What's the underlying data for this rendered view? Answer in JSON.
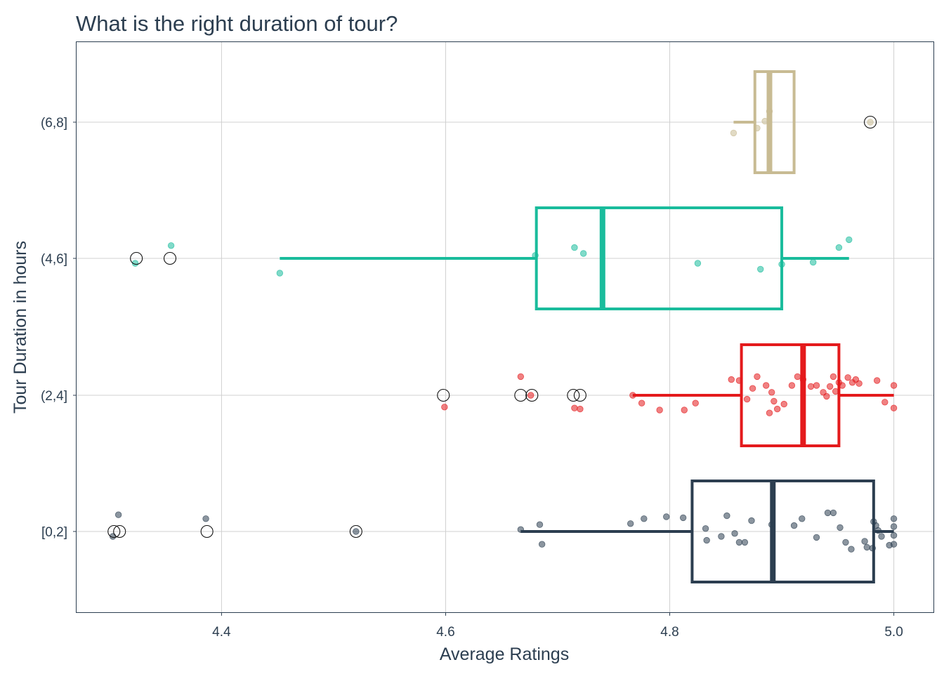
{
  "chart_data": {
    "type": "boxplot",
    "orientation": "horizontal",
    "title": "What is the right duration of tour?",
    "xlabel": "Average Ratings",
    "ylabel": "Tour Duration in hours",
    "xlim": [
      4.27,
      5.036
    ],
    "x_ticks": [
      "4.4",
      "4.6",
      "4.8",
      "5.0"
    ],
    "categories": [
      "[0,2]",
      "(2,4]",
      "(4,6]",
      "(6,8]"
    ],
    "grid": true,
    "legend": "none",
    "outlier_marker": "open-circle",
    "series": [
      {
        "category": "[0,2]",
        "color": "#2c3e50",
        "box": {
          "whisker_low": 4.667,
          "q1": 4.82,
          "median": 4.892,
          "q3": 4.982,
          "whisker_high": 5.0
        },
        "outliers": [
          4.304,
          4.309,
          4.387,
          4.52
        ],
        "points": [
          [
            4.303,
            -0.05
          ],
          [
            4.308,
            0.17
          ],
          [
            4.386,
            0.13
          ],
          [
            4.52,
            0.0
          ],
          [
            4.667,
            0.02
          ],
          [
            4.686,
            -0.13
          ],
          [
            4.684,
            0.07
          ],
          [
            4.765,
            0.08
          ],
          [
            4.777,
            0.13
          ],
          [
            4.797,
            0.15
          ],
          [
            4.812,
            0.14
          ],
          [
            4.832,
            0.03
          ],
          [
            4.833,
            -0.09
          ],
          [
            4.846,
            -0.05
          ],
          [
            4.851,
            0.16
          ],
          [
            4.858,
            -0.02
          ],
          [
            4.862,
            -0.11
          ],
          [
            4.867,
            -0.11
          ],
          [
            4.873,
            0.11
          ],
          [
            4.891,
            0.07
          ],
          [
            4.911,
            0.06
          ],
          [
            4.918,
            0.13
          ],
          [
            4.931,
            -0.06
          ],
          [
            4.941,
            0.19
          ],
          [
            4.946,
            0.19
          ],
          [
            4.952,
            0.04
          ],
          [
            4.957,
            -0.11
          ],
          [
            4.962,
            -0.18
          ],
          [
            4.974,
            -0.1
          ],
          [
            4.976,
            -0.16
          ],
          [
            4.981,
            -0.17
          ],
          [
            4.982,
            0.1
          ],
          [
            4.984,
            0.06
          ],
          [
            4.986,
            0.01
          ],
          [
            4.989,
            -0.05
          ],
          [
            4.996,
            -0.14
          ],
          [
            5.0,
            0.13
          ],
          [
            5.0,
            0.05
          ],
          [
            5.0,
            -0.04
          ],
          [
            5.0,
            -0.13
          ]
        ]
      },
      {
        "category": "(2,4]",
        "color": "#e41a1c",
        "box": {
          "whisker_low": 4.767,
          "q1": 4.864,
          "median": 4.919,
          "q3": 4.951,
          "whisker_high": 5.0
        },
        "outliers": [
          4.598,
          4.667,
          4.677,
          4.714,
          4.72
        ],
        "points": [
          [
            4.599,
            -0.12
          ],
          [
            4.667,
            0.19
          ],
          [
            4.676,
            0.0
          ],
          [
            4.715,
            -0.13
          ],
          [
            4.72,
            -0.14
          ],
          [
            4.767,
            0.0
          ],
          [
            4.775,
            -0.08
          ],
          [
            4.791,
            -0.15
          ],
          [
            4.813,
            -0.15
          ],
          [
            4.823,
            -0.08
          ],
          [
            4.855,
            0.16
          ],
          [
            4.862,
            0.15
          ],
          [
            4.869,
            -0.04
          ],
          [
            4.874,
            0.07
          ],
          [
            4.878,
            0.19
          ],
          [
            4.886,
            0.1
          ],
          [
            4.889,
            -0.18
          ],
          [
            4.891,
            0.03
          ],
          [
            4.893,
            -0.06
          ],
          [
            4.896,
            -0.14
          ],
          [
            4.902,
            -0.09
          ],
          [
            4.909,
            0.1
          ],
          [
            4.914,
            0.19
          ],
          [
            4.919,
            0.16
          ],
          [
            4.926,
            0.09
          ],
          [
            4.931,
            0.1
          ],
          [
            4.937,
            0.03
          ],
          [
            4.94,
            -0.01
          ],
          [
            4.943,
            0.09
          ],
          [
            4.946,
            0.19
          ],
          [
            4.948,
            0.04
          ],
          [
            4.951,
            0.13
          ],
          [
            4.954,
            0.1
          ],
          [
            4.959,
            0.18
          ],
          [
            4.963,
            0.13
          ],
          [
            4.966,
            0.16
          ],
          [
            4.969,
            0.12
          ],
          [
            4.985,
            0.15
          ],
          [
            4.992,
            -0.07
          ],
          [
            5.0,
            0.1
          ],
          [
            5.0,
            -0.13
          ]
        ]
      },
      {
        "category": "(4,6]",
        "color": "#1abc9c",
        "box": {
          "whisker_low": 4.452,
          "q1": 4.681,
          "median": 4.74,
          "q3": 4.9,
          "whisker_high": 4.96
        },
        "outliers": [
          4.324,
          4.354
        ],
        "points": [
          [
            4.323,
            -0.05
          ],
          [
            4.355,
            0.13
          ],
          [
            4.452,
            -0.15
          ],
          [
            4.68,
            0.03
          ],
          [
            4.715,
            0.11
          ],
          [
            4.723,
            0.05
          ],
          [
            4.825,
            -0.05
          ],
          [
            4.881,
            -0.11
          ],
          [
            4.9,
            -0.06
          ],
          [
            4.928,
            -0.04
          ],
          [
            4.951,
            0.11
          ],
          [
            4.96,
            0.19
          ]
        ]
      },
      {
        "category": "(6,8]",
        "color": "#c8bb93",
        "box": {
          "whisker_low": 4.857,
          "q1": 4.876,
          "median": 4.889,
          "q3": 4.911,
          "whisker_high": 4.911
        },
        "outliers": [
          4.979
        ],
        "points": [
          [
            4.857,
            -0.11
          ],
          [
            4.878,
            -0.06
          ],
          [
            4.885,
            0.01
          ],
          [
            4.889,
            0.11
          ],
          [
            4.979,
            0.0
          ]
        ]
      }
    ]
  }
}
